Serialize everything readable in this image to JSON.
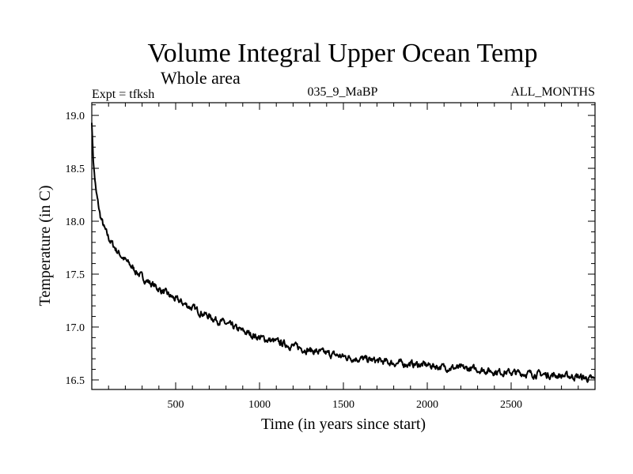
{
  "chart_data": {
    "type": "line",
    "title": "Volume Integral Upper Ocean Temp",
    "subtitle": "Whole area",
    "experiment_label": "Expt = tfksh",
    "run_label": "035_9_MaBP",
    "months_label": "ALL_MONTHS",
    "xlabel": "Time (in years since start)",
    "ylabel": "Temperature (in C)",
    "xlim": [
      0,
      3000
    ],
    "ylim": [
      16.41,
      19.12
    ],
    "xticks": [
      500,
      1000,
      1500,
      2000,
      2500
    ],
    "yticks": [
      16.5,
      17.0,
      17.5,
      18.0,
      18.5,
      19.0
    ],
    "ytick_labels": [
      "16.5",
      "17.0",
      "17.5",
      "18.0",
      "18.5",
      "19.0"
    ],
    "grid": false,
    "series": [
      {
        "name": "Volume Integral Upper Ocean Temp",
        "x": [
          0,
          10,
          25,
          50,
          75,
          100,
          150,
          200,
          300,
          400,
          500,
          600,
          700,
          800,
          900,
          1000,
          1100,
          1200,
          1300,
          1400,
          1500,
          1600,
          1700,
          1800,
          1900,
          2000,
          2100,
          2200,
          2300,
          2400,
          2500,
          2600,
          2700,
          2800,
          2900,
          3000
        ],
        "y": [
          18.93,
          18.55,
          18.28,
          18.05,
          17.93,
          17.84,
          17.72,
          17.63,
          17.47,
          17.36,
          17.26,
          17.18,
          17.1,
          17.03,
          16.96,
          16.9,
          16.86,
          16.82,
          16.78,
          16.75,
          16.72,
          16.7,
          16.68,
          16.66,
          16.65,
          16.64,
          16.62,
          16.61,
          16.6,
          16.58,
          16.57,
          16.56,
          16.55,
          16.54,
          16.53,
          16.5
        ]
      }
    ]
  }
}
